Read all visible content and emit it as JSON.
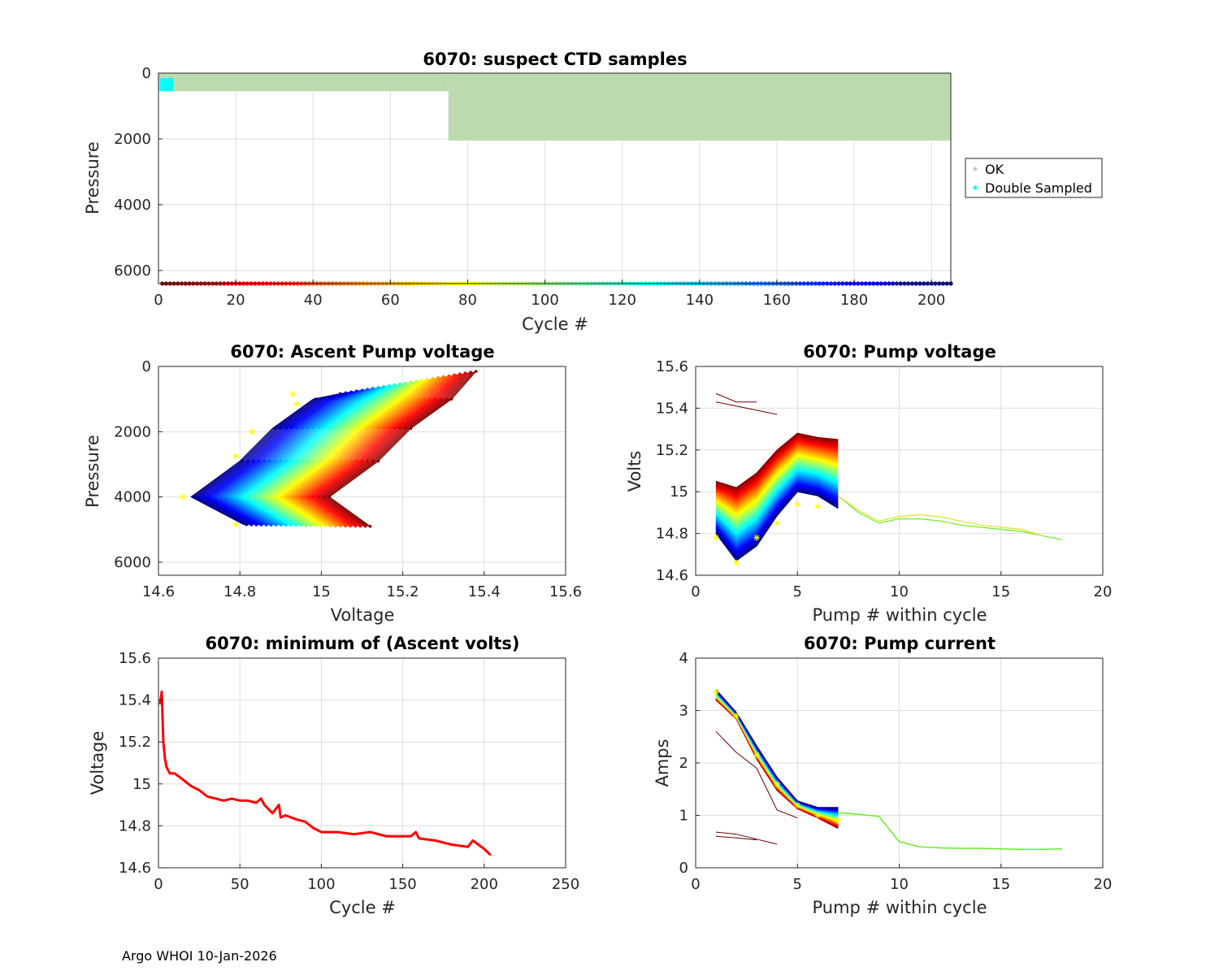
{
  "footer": "Argo WHOI 10-Jan-2026",
  "colors": {
    "ok": "#bcdab0",
    "double_sampled": "#00ffff",
    "grid": "#dcdcdc",
    "min_line": "#ff0000",
    "marker": "#ffff00"
  },
  "chart_data": [
    {
      "id": "suspect",
      "type": "scatter",
      "title": "6070: suspect CTD samples",
      "xlabel": "Cycle #",
      "ylabel": "Pressure",
      "xlim": [
        0,
        205
      ],
      "ylim": [
        0,
        6400
      ],
      "y_reversed": true,
      "xticks": [
        0,
        20,
        40,
        60,
        80,
        100,
        120,
        140,
        160,
        180,
        200
      ],
      "yticks": [
        0,
        2000,
        4000,
        6000
      ],
      "legend": {
        "position": "outside-right",
        "entries": [
          "OK",
          "Double Sampled"
        ]
      },
      "series": [
        {
          "name": "OK",
          "segments": [
            {
              "x_from": 0,
              "x_to": 75,
              "pmax": 550
            },
            {
              "x_from": 75,
              "x_to": 205,
              "pmax": 2050
            }
          ]
        },
        {
          "name": "Double Sampled",
          "x_range": [
            0,
            3
          ],
          "p_range": [
            150,
            550
          ]
        }
      ],
      "cycle_color_bar": {
        "pressure": 6400,
        "x_range": [
          0,
          205
        ]
      }
    },
    {
      "id": "ascent_voltage",
      "type": "line",
      "title": "6070: Ascent Pump voltage",
      "xlabel": "Voltage",
      "ylabel": "Pressure",
      "xlim": [
        14.6,
        15.6
      ],
      "ylim": [
        0,
        6400
      ],
      "y_reversed": true,
      "xticks": [
        14.6,
        14.8,
        15,
        15.2,
        15.4,
        15.6
      ],
      "yticks": [
        0,
        2000,
        4000,
        6000
      ],
      "series_model": {
        "cycles": 205,
        "v_at_4000_first": 15.02,
        "v_at_4000_last": 14.68,
        "deepest_pressure": 4900
      }
    },
    {
      "id": "pump_voltage",
      "type": "line",
      "title": "6070: Pump voltage",
      "xlabel": "Pump # within cycle",
      "ylabel": "Volts",
      "xlim": [
        0,
        20
      ],
      "ylim": [
        14.6,
        15.6
      ],
      "xticks": [
        0,
        5,
        10,
        15,
        20
      ],
      "yticks": [
        14.6,
        14.8,
        15,
        15.2,
        15.4,
        15.6
      ],
      "series_model": {
        "cycles": 205,
        "pump1_first": 15.05,
        "pump1_last": 14.8,
        "pump2_last": 14.66,
        "pump5_last": 15.0
      },
      "long_cycles": [
        {
          "name": "long-1",
          "x": [
            7,
            8,
            9,
            10,
            11,
            12,
            13,
            14,
            15,
            16,
            17,
            18
          ],
          "y": [
            14.98,
            14.9,
            14.85,
            14.87,
            14.87,
            14.86,
            14.84,
            14.83,
            14.82,
            14.81,
            14.79,
            14.77
          ]
        },
        {
          "name": "long-2",
          "x": [
            7,
            8,
            9,
            10,
            11,
            12,
            13,
            14,
            15,
            16,
            17
          ],
          "y": [
            14.98,
            14.91,
            14.86,
            14.88,
            14.89,
            14.88,
            14.86,
            14.84,
            14.83,
            14.82,
            14.79
          ]
        }
      ]
    },
    {
      "id": "min_ascent",
      "type": "line",
      "title": "6070: minimum of (Ascent volts)",
      "xlabel": "Cycle #",
      "ylabel": "Voltage",
      "xlim": [
        0,
        250
      ],
      "ylim": [
        14.6,
        15.6
      ],
      "xticks": [
        0,
        50,
        100,
        150,
        200,
        250
      ],
      "yticks": [
        14.6,
        14.8,
        15,
        15.2,
        15.4,
        15.6
      ],
      "x": [
        1,
        2,
        3,
        4,
        5,
        7,
        10,
        15,
        20,
        25,
        30,
        40,
        45,
        50,
        55,
        60,
        63,
        65,
        70,
        74,
        75,
        78,
        85,
        90,
        95,
        100,
        110,
        120,
        130,
        140,
        150,
        155,
        158,
        160,
        170,
        180,
        190,
        193,
        200,
        204
      ],
      "y": [
        15.38,
        15.44,
        15.2,
        15.12,
        15.08,
        15.05,
        15.05,
        15.02,
        14.99,
        14.97,
        14.94,
        14.92,
        14.93,
        14.92,
        14.92,
        14.91,
        14.93,
        14.9,
        14.86,
        14.9,
        14.84,
        14.85,
        14.83,
        14.82,
        14.79,
        14.77,
        14.77,
        14.76,
        14.77,
        14.75,
        14.75,
        14.75,
        14.77,
        14.74,
        14.73,
        14.71,
        14.7,
        14.73,
        14.69,
        14.66
      ]
    },
    {
      "id": "pump_current",
      "type": "line",
      "title": "6070: Pump current",
      "xlabel": "Pump # within cycle",
      "ylabel": "Amps",
      "xlim": [
        0,
        20
      ],
      "ylim": [
        0,
        4
      ],
      "xticks": [
        0,
        5,
        10,
        15,
        20
      ],
      "yticks": [
        0,
        1,
        2,
        3,
        4
      ],
      "series_model": {
        "cycles": 205,
        "pump1": 3.3,
        "pump2": 2.9,
        "pump3": 2.2,
        "pump4": 1.6,
        "pump5": 1.2,
        "pump6": 1.05,
        "pump7": 0.95
      },
      "long_cycles": [
        {
          "name": "long-1",
          "x": [
            7,
            8,
            9,
            10,
            11,
            12,
            13,
            14,
            15,
            16,
            17,
            18
          ],
          "y": [
            1.05,
            1.02,
            0.98,
            0.5,
            0.4,
            0.38,
            0.37,
            0.37,
            0.36,
            0.35,
            0.35,
            0.36
          ]
        }
      ]
    }
  ]
}
